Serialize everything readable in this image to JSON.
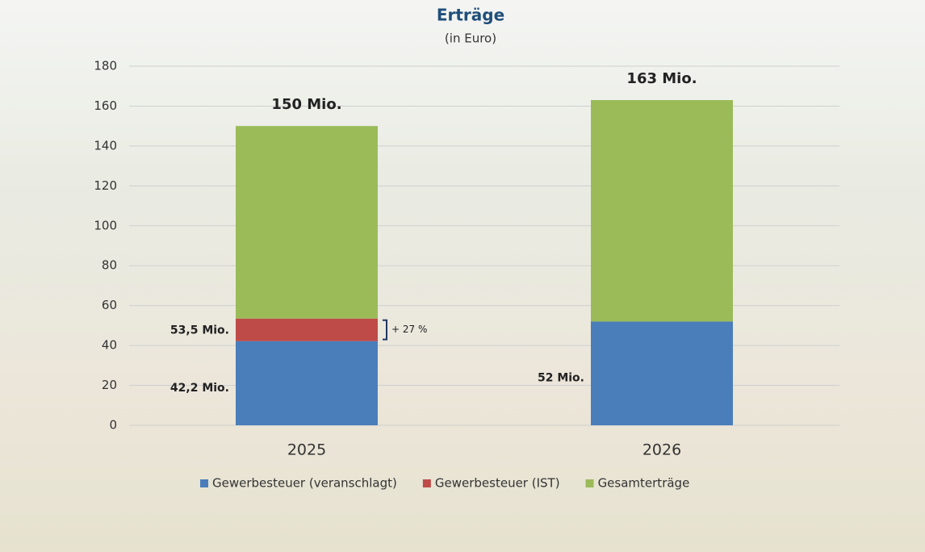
{
  "chart_data": {
    "type": "stacked_bar",
    "title": "Erträge",
    "subtitle": "(in Euro)",
    "categories": [
      "2025",
      "2026"
    ],
    "series": [
      {
        "name": "Gewerbesteuer (veranschlagt)",
        "color": "#4a7ebb",
        "values": [
          42.2,
          52
        ],
        "value_labels": [
          "42,2 Mio.",
          "52 Mio."
        ]
      },
      {
        "name": "Gewerbesteuer (IST)",
        "color": "#be4b48",
        "values": [
          11.3,
          null
        ]
      },
      {
        "name": "Gesamterträge",
        "color": "#9bbb59",
        "values": [
          96.5,
          111
        ]
      }
    ],
    "annotations": [
      {
        "label": "150 Mio.",
        "value": 150,
        "category": "2025",
        "kind": "total"
      },
      {
        "label": "163 Mio.",
        "value": 163,
        "category": "2026",
        "kind": "total"
      },
      {
        "label": "53,5 Mio.",
        "value": 53.5,
        "category": "2025",
        "kind": "side"
      },
      {
        "label": "+ 27 %",
        "value": 27,
        "category": "2025",
        "kind": "bracket"
      }
    ],
    "ylim": [
      0,
      180
    ],
    "yticks": [
      0,
      20,
      40,
      60,
      80,
      100,
      120,
      140,
      160,
      180
    ],
    "grid": true,
    "legend": "bottom"
  }
}
